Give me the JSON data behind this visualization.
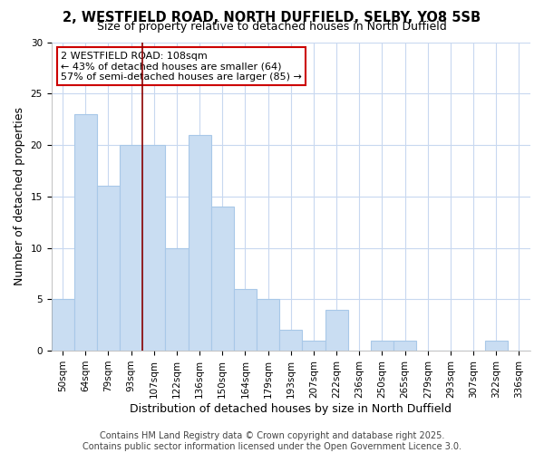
{
  "title1": "2, WESTFIELD ROAD, NORTH DUFFIELD, SELBY, YO8 5SB",
  "title2": "Size of property relative to detached houses in North Duffield",
  "xlabel": "Distribution of detached houses by size in North Duffield",
  "ylabel": "Number of detached properties",
  "categories": [
    "50sqm",
    "64sqm",
    "79sqm",
    "93sqm",
    "107sqm",
    "122sqm",
    "136sqm",
    "150sqm",
    "164sqm",
    "179sqm",
    "193sqm",
    "207sqm",
    "222sqm",
    "236sqm",
    "250sqm",
    "265sqm",
    "279sqm",
    "293sqm",
    "307sqm",
    "322sqm",
    "336sqm"
  ],
  "values": [
    5,
    23,
    16,
    20,
    20,
    10,
    21,
    14,
    6,
    5,
    2,
    1,
    4,
    0,
    1,
    1,
    0,
    0,
    0,
    1,
    0
  ],
  "bar_color": "#c9ddf2",
  "bar_edge_color": "#a8c8e8",
  "vline_position": 3.5,
  "vline_color": "#8b0000",
  "annotation_title": "2 WESTFIELD ROAD: 108sqm",
  "annotation_line1": "← 43% of detached houses are smaller (64)",
  "annotation_line2": "57% of semi-detached houses are larger (85) →",
  "annotation_box_color": "#ffffff",
  "annotation_box_edge": "#cc0000",
  "ylim": [
    0,
    30
  ],
  "yticks": [
    0,
    5,
    10,
    15,
    20,
    25,
    30
  ],
  "footer": "Contains HM Land Registry data © Crown copyright and database right 2025.\nContains public sector information licensed under the Open Government Licence 3.0.",
  "background_color": "#ffffff",
  "grid_color": "#c8d8f0",
  "title_fontsize": 10.5,
  "subtitle_fontsize": 9,
  "axis_label_fontsize": 9,
  "tick_fontsize": 7.5,
  "annotation_fontsize": 8,
  "footer_fontsize": 7
}
